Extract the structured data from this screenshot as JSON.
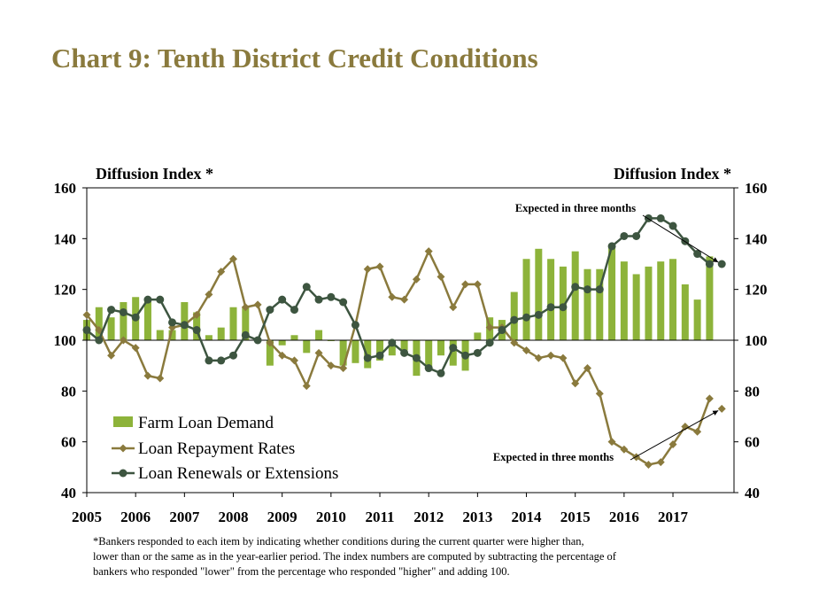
{
  "title": "Chart 9: Tenth District Credit Conditions",
  "footnote": [
    "*Bankers responded to each item by indicating whether conditions during the current quarter were higher than,",
    "lower than or the same as in the year-earlier period.  The index numbers are computed by subtracting the percentage of",
    "bankers who responded \"lower\" from the percentage who responded \"higher\" and adding 100."
  ],
  "colors": {
    "title": "#8a7a3d",
    "farm_loan_demand": "#8db33a",
    "loan_repayment_rates": "#8a7a3d",
    "loan_renewals": "#3d5540"
  },
  "chart_data": {
    "type": "bar+line",
    "ylabel_left": "Diffusion Index *",
    "ylabel_right": "Diffusion Index *",
    "ylim": [
      40,
      160
    ],
    "yticks": [
      40,
      60,
      80,
      100,
      120,
      140,
      160
    ],
    "x_start": 2005.0,
    "x_end": 2018.25,
    "xtick_labels": [
      "2005",
      "2006",
      "2007",
      "2008",
      "2009",
      "2010",
      "2011",
      "2012",
      "2013",
      "2014",
      "2015",
      "2016",
      "2017"
    ],
    "baseline": 100,
    "legend_position": "bottom-left",
    "annotations": [
      {
        "text": "Expected in three months",
        "series": "Loan Renewals or Extensions"
      },
      {
        "text": "Expected in three months",
        "series": "Loan Repayment Rates"
      }
    ],
    "series": [
      {
        "name": "Farm Loan Demand",
        "kind": "bar",
        "values": [
          108,
          113,
          109,
          115,
          117,
          116,
          104,
          104,
          115,
          111,
          102,
          105,
          113,
          113,
          100,
          90,
          98,
          102,
          95,
          104,
          100,
          90,
          91,
          89,
          92,
          94,
          96,
          86,
          89,
          94,
          90,
          88,
          103,
          109,
          108,
          119,
          132,
          136,
          132,
          129,
          135,
          128,
          128,
          137,
          131,
          126,
          129,
          131,
          132,
          122,
          116,
          133
        ]
      },
      {
        "name": "Loan Repayment Rates",
        "kind": "line",
        "marker": "diamond",
        "values": [
          110,
          104,
          94,
          100,
          97,
          86,
          85,
          105,
          106,
          110,
          118,
          127,
          132,
          113,
          114,
          99,
          94,
          92,
          82,
          95,
          90,
          89,
          106,
          128,
          129,
          117,
          116,
          124,
          135,
          125,
          113,
          122,
          122,
          105,
          105,
          99,
          96,
          93,
          94,
          93,
          83,
          89,
          79,
          60,
          57,
          54,
          51,
          52,
          59,
          66,
          64,
          77,
          73
        ],
        "expected_index": 52
      },
      {
        "name": "Loan Renewals or Extensions",
        "kind": "line",
        "marker": "circle",
        "values": [
          104,
          100,
          112,
          111,
          109,
          116,
          116,
          107,
          106,
          104,
          92,
          92,
          94,
          102,
          100,
          112,
          116,
          112,
          121,
          116,
          117,
          115,
          106,
          93,
          94,
          99,
          95,
          93,
          89,
          87,
          97,
          94,
          95,
          99,
          104,
          108,
          109,
          110,
          113,
          113,
          121,
          120,
          120,
          137,
          141,
          141,
          148,
          148,
          145,
          139,
          134,
          130,
          130
        ],
        "expected_index": 52
      }
    ]
  }
}
